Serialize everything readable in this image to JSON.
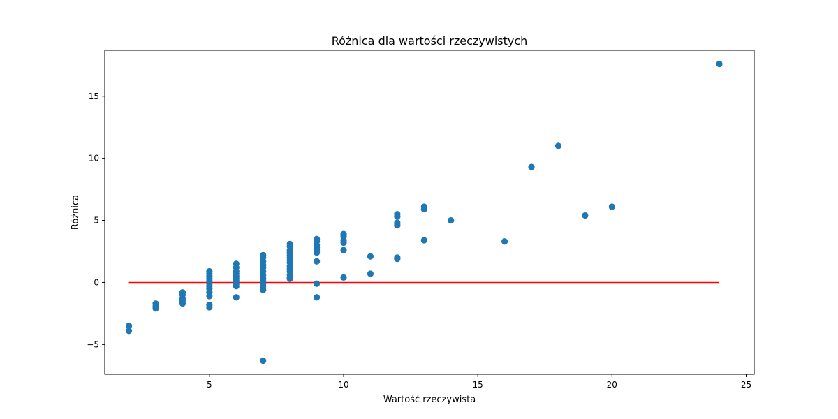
{
  "chart_data": {
    "type": "scatter",
    "title": "Różnica dla wartości rzeczywistych",
    "xlabel": "Wartość rzeczywista",
    "ylabel": "Różnica",
    "xlim": [
      1.1,
      25.3
    ],
    "ylim": [
      -7.4,
      18.7
    ],
    "x_ticks": [
      {
        "value": 5,
        "label": "5"
      },
      {
        "value": 10,
        "label": "10"
      },
      {
        "value": 15,
        "label": "15"
      },
      {
        "value": 20,
        "label": "20"
      },
      {
        "value": 25,
        "label": "25"
      }
    ],
    "y_ticks": [
      {
        "value": -5,
        "label": "−5"
      },
      {
        "value": 0,
        "label": "0"
      },
      {
        "value": 5,
        "label": "5"
      },
      {
        "value": 10,
        "label": "10"
      },
      {
        "value": 15,
        "label": "15"
      }
    ],
    "grid": false,
    "legend": "none",
    "colors": {
      "points": "#1f77b4",
      "reference_line": "#ff0000",
      "axes": "#000000"
    },
    "series": [
      {
        "values": [
          {
            "x": 2,
            "y": -3.5
          },
          {
            "x": 2,
            "y": -3.9
          },
          {
            "x": 3,
            "y": -1.7
          },
          {
            "x": 3,
            "y": -1.9
          },
          {
            "x": 3,
            "y": -2.1
          },
          {
            "x": 4,
            "y": -0.8
          },
          {
            "x": 4,
            "y": -1.0
          },
          {
            "x": 4,
            "y": -1.3
          },
          {
            "x": 4,
            "y": -1.5
          },
          {
            "x": 4,
            "y": -1.7
          },
          {
            "x": 5,
            "y": 0.9
          },
          {
            "x": 5,
            "y": 0.7
          },
          {
            "x": 5,
            "y": 0.5
          },
          {
            "x": 5,
            "y": 0.3
          },
          {
            "x": 5,
            "y": 0.1
          },
          {
            "x": 5,
            "y": -0.1
          },
          {
            "x": 5,
            "y": -0.3
          },
          {
            "x": 5,
            "y": -0.5
          },
          {
            "x": 5,
            "y": -0.8
          },
          {
            "x": 5,
            "y": -1.1
          },
          {
            "x": 5,
            "y": -1.8
          },
          {
            "x": 5,
            "y": -2.0
          },
          {
            "x": 6,
            "y": 1.5
          },
          {
            "x": 6,
            "y": 1.2
          },
          {
            "x": 6,
            "y": 0.9
          },
          {
            "x": 6,
            "y": 0.7
          },
          {
            "x": 6,
            "y": 0.5
          },
          {
            "x": 6,
            "y": 0.3
          },
          {
            "x": 6,
            "y": 0.1
          },
          {
            "x": 6,
            "y": -0.1
          },
          {
            "x": 6,
            "y": -0.3
          },
          {
            "x": 6,
            "y": -1.2
          },
          {
            "x": 7,
            "y": 2.2
          },
          {
            "x": 7,
            "y": 2.0
          },
          {
            "x": 7,
            "y": 1.7
          },
          {
            "x": 7,
            "y": 1.4
          },
          {
            "x": 7,
            "y": 1.2
          },
          {
            "x": 7,
            "y": 0.9
          },
          {
            "x": 7,
            "y": 0.6
          },
          {
            "x": 7,
            "y": 0.3
          },
          {
            "x": 7,
            "y": 0.1
          },
          {
            "x": 7,
            "y": -0.1
          },
          {
            "x": 7,
            "y": -0.3
          },
          {
            "x": 7,
            "y": -0.6
          },
          {
            "x": 7,
            "y": -6.3
          },
          {
            "x": 8,
            "y": 3.1
          },
          {
            "x": 8,
            "y": 2.9
          },
          {
            "x": 8,
            "y": 2.6
          },
          {
            "x": 8,
            "y": 2.4
          },
          {
            "x": 8,
            "y": 2.2
          },
          {
            "x": 8,
            "y": 2.0
          },
          {
            "x": 8,
            "y": 1.8
          },
          {
            "x": 8,
            "y": 1.6
          },
          {
            "x": 8,
            "y": 1.3
          },
          {
            "x": 8,
            "y": 1.1
          },
          {
            "x": 8,
            "y": 0.9
          },
          {
            "x": 8,
            "y": 0.6
          },
          {
            "x": 8,
            "y": 0.4
          },
          {
            "x": 8,
            "y": 0.3
          },
          {
            "x": 9,
            "y": 3.5
          },
          {
            "x": 9,
            "y": 3.3
          },
          {
            "x": 9,
            "y": 3.0
          },
          {
            "x": 9,
            "y": 2.8
          },
          {
            "x": 9,
            "y": 2.6
          },
          {
            "x": 9,
            "y": 2.4
          },
          {
            "x": 9,
            "y": 1.7
          },
          {
            "x": 9,
            "y": -0.1
          },
          {
            "x": 9,
            "y": -1.2
          },
          {
            "x": 10,
            "y": 3.9
          },
          {
            "x": 10,
            "y": 3.7
          },
          {
            "x": 10,
            "y": 3.4
          },
          {
            "x": 10,
            "y": 3.2
          },
          {
            "x": 10,
            "y": 2.6
          },
          {
            "x": 10,
            "y": 0.4
          },
          {
            "x": 11,
            "y": 2.1
          },
          {
            "x": 11,
            "y": 0.7
          },
          {
            "x": 12,
            "y": 5.5
          },
          {
            "x": 12,
            "y": 5.3
          },
          {
            "x": 12,
            "y": 4.8
          },
          {
            "x": 12,
            "y": 4.6
          },
          {
            "x": 12,
            "y": 2.0
          },
          {
            "x": 12,
            "y": 1.9
          },
          {
            "x": 13,
            "y": 6.1
          },
          {
            "x": 13,
            "y": 5.9
          },
          {
            "x": 13,
            "y": 3.4
          },
          {
            "x": 14,
            "y": 5.0
          },
          {
            "x": 16,
            "y": 3.3
          },
          {
            "x": 17,
            "y": 9.3
          },
          {
            "x": 18,
            "y": 11.0
          },
          {
            "x": 19,
            "y": 5.4
          },
          {
            "x": 20,
            "y": 6.1
          },
          {
            "x": 24,
            "y": 17.6
          }
        ]
      }
    ],
    "reference_line": {
      "x": [
        2,
        24
      ],
      "y": [
        0,
        0
      ]
    }
  }
}
